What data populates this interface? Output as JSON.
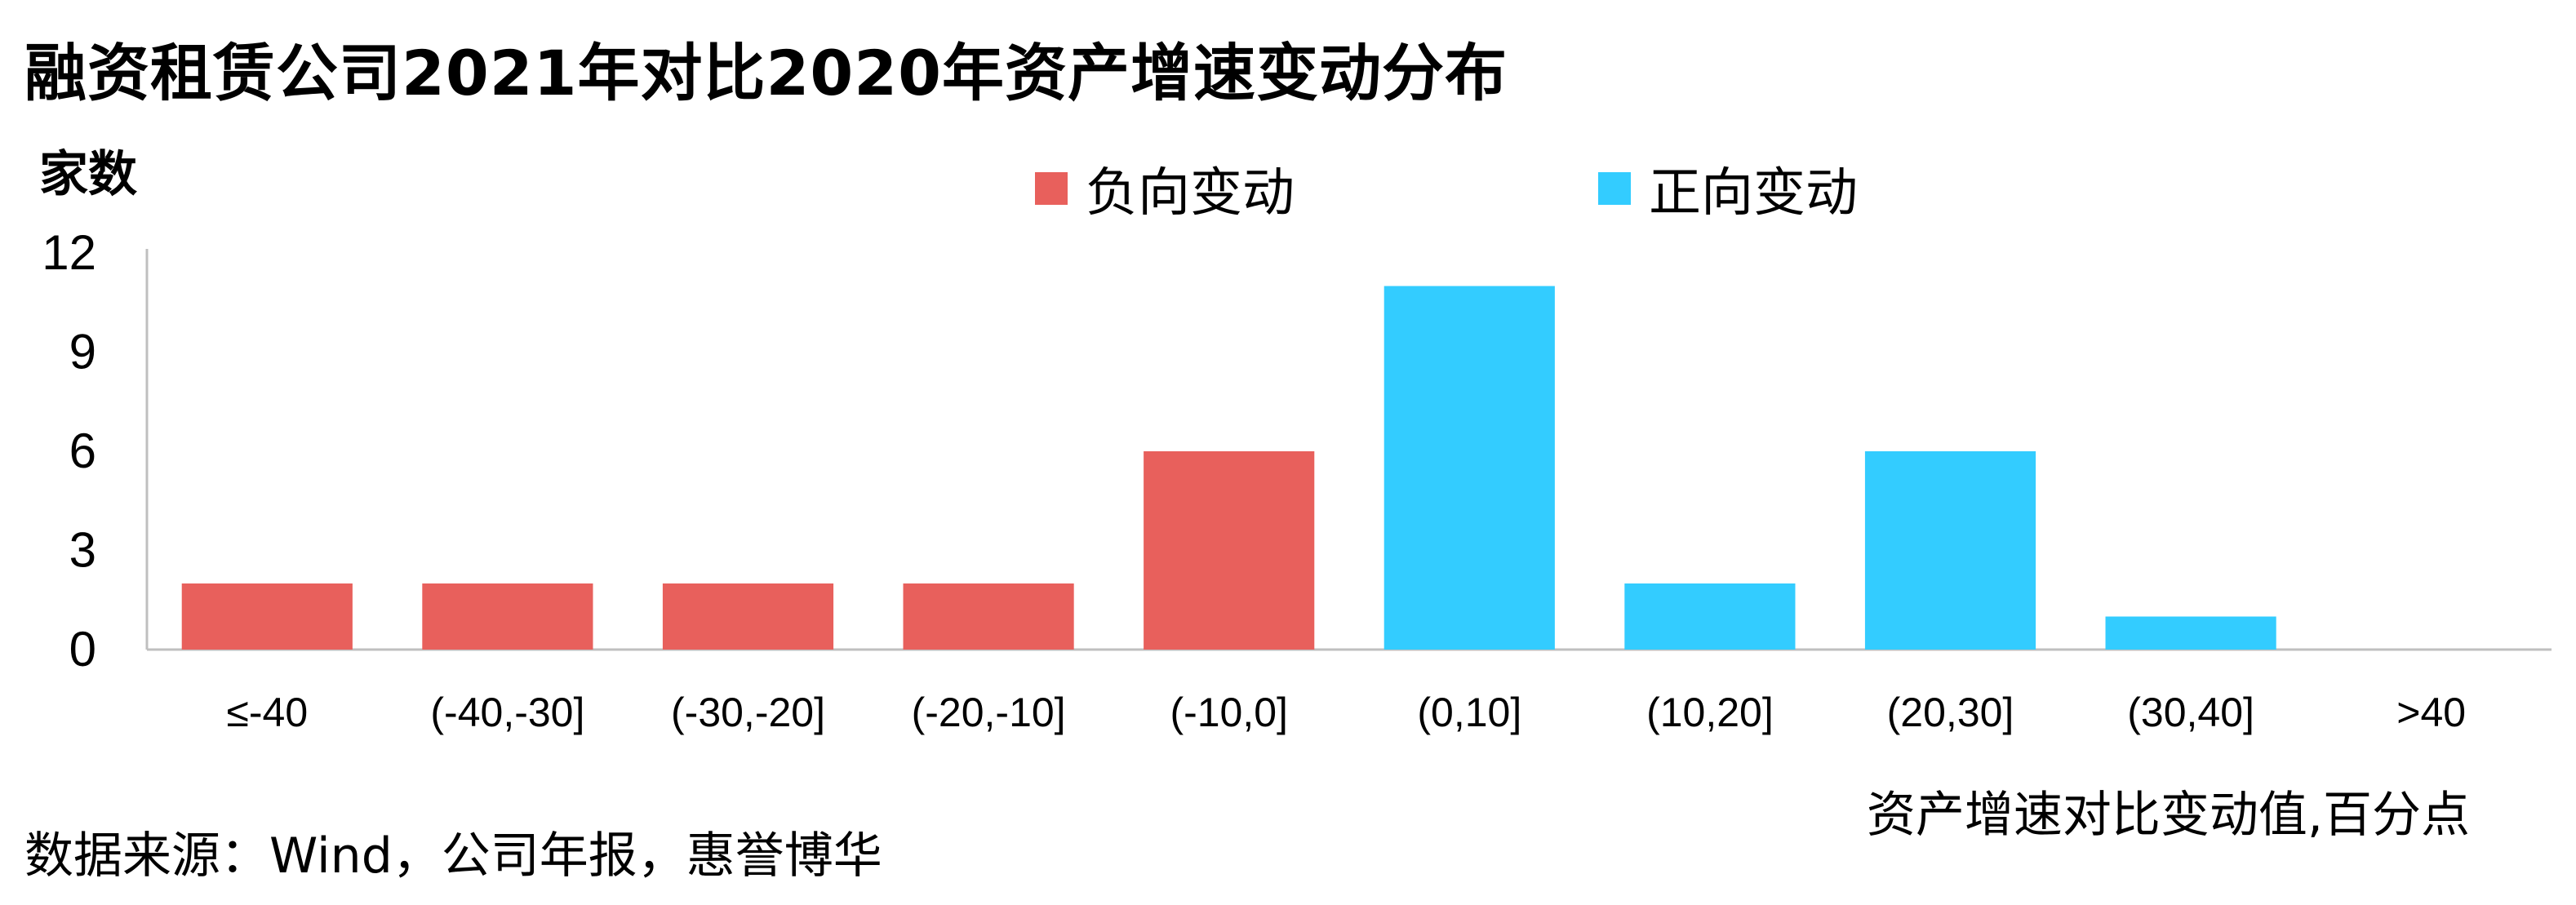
{
  "chart_data": {
    "type": "bar",
    "title": "融资租赁公司2021年对比2020年资产增速变动分布",
    "ylabel": "家数",
    "xlabel": "资产增速对比变动值,百分点",
    "categories": [
      "≤-40",
      "(-40,-30]",
      "(-30,-20]",
      "(-20,-10]",
      "(-10,0]",
      "(0,10]",
      "(10,20]",
      "(20,30]",
      "(30,40]",
      ">40"
    ],
    "series": [
      {
        "name": "负向变动",
        "color": "#E8605C",
        "values": [
          2,
          2,
          2,
          2,
          6,
          null,
          null,
          null,
          null,
          null
        ]
      },
      {
        "name": "正向变动",
        "color": "#33CCFF",
        "values": [
          null,
          null,
          null,
          null,
          null,
          11,
          2,
          6,
          1,
          0
        ]
      }
    ],
    "ylim": [
      0,
      12
    ],
    "yticks": [
      0,
      3,
      6,
      9,
      12
    ],
    "grid": false,
    "legend": "top-center"
  },
  "source": "数据来源：Wind，公司年报，惠誉博华"
}
